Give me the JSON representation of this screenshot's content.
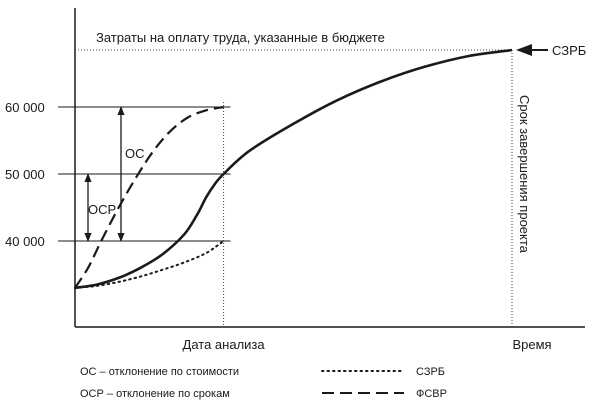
{
  "chart_data": {
    "type": "line",
    "title": "",
    "xlabel": "Время",
    "ylabel": "",
    "xlim": [
      0,
      1
    ],
    "ylim": [
      33000,
      70000
    ],
    "yticks": [
      {
        "value": 40000,
        "label": "40 000"
      },
      {
        "value": 50000,
        "label": "50 000"
      },
      {
        "value": 60000,
        "label": "60 000"
      }
    ],
    "budget_line": {
      "value": 68500,
      "label": "Затраты на оплату труда, указанные в бюджете"
    },
    "analysis_date": {
      "x": 0.34,
      "label": "Дата анализа"
    },
    "completion_date": {
      "x": 1.0,
      "label": "Срок завершения проекта"
    },
    "end_marker_label": "СЗРБ",
    "series": [
      {
        "name": "",
        "style": "solid",
        "x": [
          0.0,
          0.05,
          0.1,
          0.15,
          0.2,
          0.25,
          0.28,
          0.3,
          0.32,
          0.34,
          0.4,
          0.5,
          0.6,
          0.7,
          0.8,
          0.9,
          1.0
        ],
        "y": [
          33000,
          33500,
          34500,
          36000,
          38000,
          41000,
          44000,
          46500,
          48500,
          50000,
          53500,
          57500,
          61000,
          63800,
          66000,
          67600,
          68500
        ]
      },
      {
        "name": "СЗРБ",
        "style": "dotted",
        "x": [
          0.0,
          0.05,
          0.1,
          0.15,
          0.2,
          0.25,
          0.3,
          0.34
        ],
        "y": [
          33000,
          33300,
          33900,
          34700,
          35700,
          36800,
          38200,
          40000
        ]
      },
      {
        "name": "ФСВР",
        "style": "dashed",
        "x": [
          0.0,
          0.03,
          0.06,
          0.1,
          0.14,
          0.18,
          0.22,
          0.26,
          0.3,
          0.34
        ],
        "y": [
          33000,
          36000,
          40000,
          45000,
          49500,
          53500,
          56500,
          58500,
          59500,
          60000
        ]
      }
    ],
    "annotations": [
      {
        "label": "ОС",
        "from": 40000,
        "to": 60000
      },
      {
        "label": "ОСР",
        "from": 40000,
        "to": 50000
      }
    ],
    "legend": {
      "position": "bottom",
      "items": [
        {
          "text": "ОС – отклонение по стоимости",
          "kind": "note"
        },
        {
          "text": "ОСР – отклонение по срокам",
          "kind": "note"
        },
        {
          "text": "СЗРБ",
          "kind": "dotted"
        },
        {
          "text": "ФСВР",
          "kind": "dashed"
        }
      ]
    },
    "grid": false
  }
}
